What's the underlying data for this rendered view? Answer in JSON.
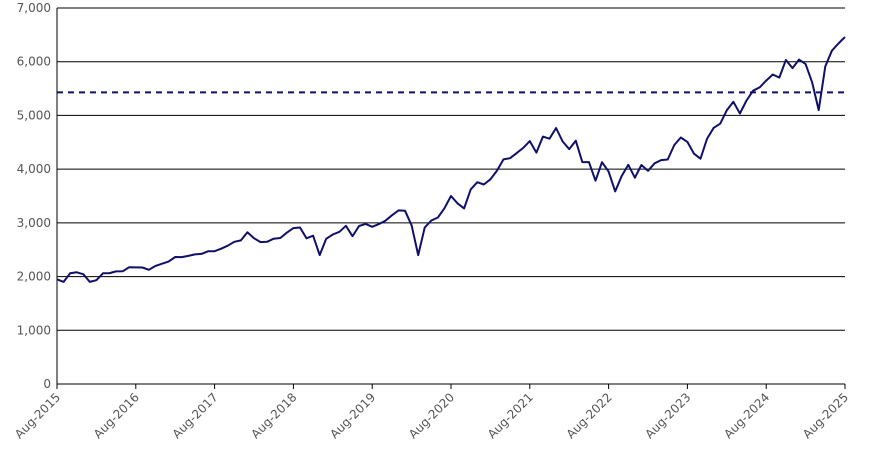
{
  "chart_data": {
    "type": "line",
    "x": [
      "Aug-2015",
      "Sep-2015",
      "Oct-2015",
      "Nov-2015",
      "Dec-2015",
      "Jan-2016",
      "Feb-2016",
      "Mar-2016",
      "Apr-2016",
      "May-2016",
      "Jun-2016",
      "Jul-2016",
      "Aug-2016",
      "Sep-2016",
      "Oct-2016",
      "Nov-2016",
      "Dec-2016",
      "Jan-2017",
      "Feb-2017",
      "Mar-2017",
      "Apr-2017",
      "May-2017",
      "Jun-2017",
      "Jul-2017",
      "Aug-2017",
      "Sep-2017",
      "Oct-2017",
      "Nov-2017",
      "Dec-2017",
      "Jan-2018",
      "Feb-2018",
      "Mar-2018",
      "Apr-2018",
      "May-2018",
      "Jun-2018",
      "Jul-2018",
      "Aug-2018",
      "Sep-2018",
      "Oct-2018",
      "Nov-2018",
      "Dec-2018",
      "Jan-2019",
      "Feb-2019",
      "Mar-2019",
      "Apr-2019",
      "May-2019",
      "Jun-2019",
      "Jul-2019",
      "Aug-2019",
      "Sep-2019",
      "Oct-2019",
      "Nov-2019",
      "Dec-2019",
      "Jan-2020",
      "Feb-2020",
      "Mar-2020",
      "Apr-2020",
      "May-2020",
      "Jun-2020",
      "Jul-2020",
      "Aug-2020",
      "Sep-2020",
      "Oct-2020",
      "Nov-2020",
      "Dec-2020",
      "Jan-2021",
      "Feb-2021",
      "Mar-2021",
      "Apr-2021",
      "May-2021",
      "Jun-2021",
      "Jul-2021",
      "Aug-2021",
      "Sep-2021",
      "Oct-2021",
      "Nov-2021",
      "Dec-2021",
      "Jan-2022",
      "Feb-2022",
      "Mar-2022",
      "Apr-2022",
      "May-2022",
      "Jun-2022",
      "Jul-2022",
      "Aug-2022",
      "Sep-2022",
      "Oct-2022",
      "Nov-2022",
      "Dec-2022",
      "Jan-2023",
      "Feb-2023",
      "Mar-2023",
      "Apr-2023",
      "May-2023",
      "Jun-2023",
      "Jul-2023",
      "Aug-2023",
      "Sep-2023",
      "Oct-2023",
      "Nov-2023",
      "Dec-2023",
      "Jan-2024",
      "Feb-2024",
      "Mar-2024",
      "Apr-2024",
      "May-2024",
      "Jun-2024",
      "Jul-2024",
      "Aug-2024",
      "Sep-2024",
      "Oct-2024",
      "Nov-2024",
      "Dec-2024",
      "Jan-2025",
      "Feb-2025",
      "Mar-2025",
      "Apr-2025",
      "May-2025",
      "Jun-2025",
      "Jul-2025",
      "Aug-2025"
    ],
    "series": [
      {
        "color": "#10106a",
        "values": [
          1950,
          1900,
          2060,
          2080,
          2044,
          1900,
          1932,
          2060,
          2065,
          2097,
          2099,
          2174,
          2171,
          2168,
          2126,
          2199,
          2239,
          2279,
          2364,
          2363,
          2384,
          2412,
          2423,
          2470,
          2472,
          2519,
          2575,
          2648,
          2674,
          2824,
          2714,
          2641,
          2648,
          2705,
          2718,
          2816,
          2902,
          2914,
          2712,
          2760,
          2400,
          2704,
          2784,
          2834,
          2946,
          2752,
          2942,
          2980,
          2926,
          2977,
          3038,
          3141,
          3231,
          3226,
          2954,
          2400,
          2912,
          3044,
          3100,
          3271,
          3500,
          3363,
          3270,
          3622,
          3756,
          3714,
          3811,
          3973,
          4181,
          4204,
          4298,
          4395,
          4523,
          4308,
          4605,
          4567,
          4766,
          4516,
          4374,
          4530,
          4132,
          4132,
          3785,
          4130,
          3955,
          3586,
          3872,
          4080,
          3840,
          4077,
          3970,
          4109,
          4169,
          4180,
          4450,
          4589,
          4508,
          4288,
          4194,
          4568,
          4770,
          4846,
          5096,
          5254,
          5036,
          5278,
          5460,
          5522,
          5648,
          5762,
          5705,
          6032,
          5882,
          6040,
          5955,
          5612,
          5100,
          5912,
          6205,
          6339,
          6460
        ]
      }
    ],
    "reference_line": {
      "value": 5430,
      "style": "dashed",
      "color": "#10106a"
    },
    "xticks": [
      "Aug-2015",
      "Aug-2016",
      "Aug-2017",
      "Aug-2018",
      "Aug-2019",
      "Aug-2020",
      "Aug-2021",
      "Aug-2022",
      "Aug-2023",
      "Aug-2024",
      "Aug-2025"
    ],
    "ylim": [
      0,
      7000
    ],
    "yticks": [
      0,
      {
        "value": 1000,
        "label": "1,000"
      },
      {
        "value": 2000,
        "label": "2,000"
      },
      {
        "value": 3000,
        "label": "3,000"
      },
      {
        "value": 4000,
        "label": "4,000"
      },
      {
        "value": 5000,
        "label": "5,000"
      },
      {
        "value": 6000,
        "label": "6,000"
      },
      {
        "value": 7000,
        "label": "7,000"
      }
    ],
    "grid": true
  }
}
